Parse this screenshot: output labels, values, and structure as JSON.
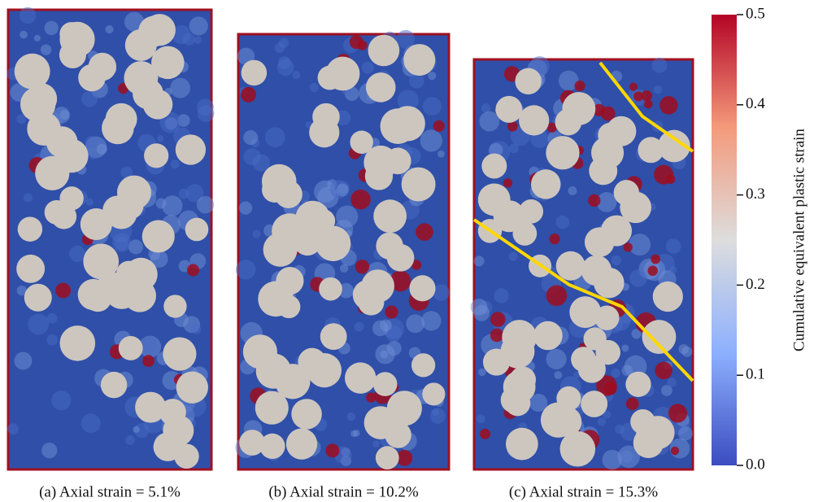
{
  "panels": [
    {
      "caption": "(a) Axial strain = 5.1%"
    },
    {
      "caption": "(b) Axial strain = 10.2%"
    },
    {
      "caption": "(c) Axial strain = 15.3%"
    }
  ],
  "colorbar": {
    "label": "Cumulative equivalent plastic strain",
    "lim": [
      0,
      0.5
    ],
    "ticks": [
      {
        "value": 0,
        "label": "0.0"
      },
      0.1,
      0.2,
      0.3,
      0.4,
      0.5
    ]
  }
}
